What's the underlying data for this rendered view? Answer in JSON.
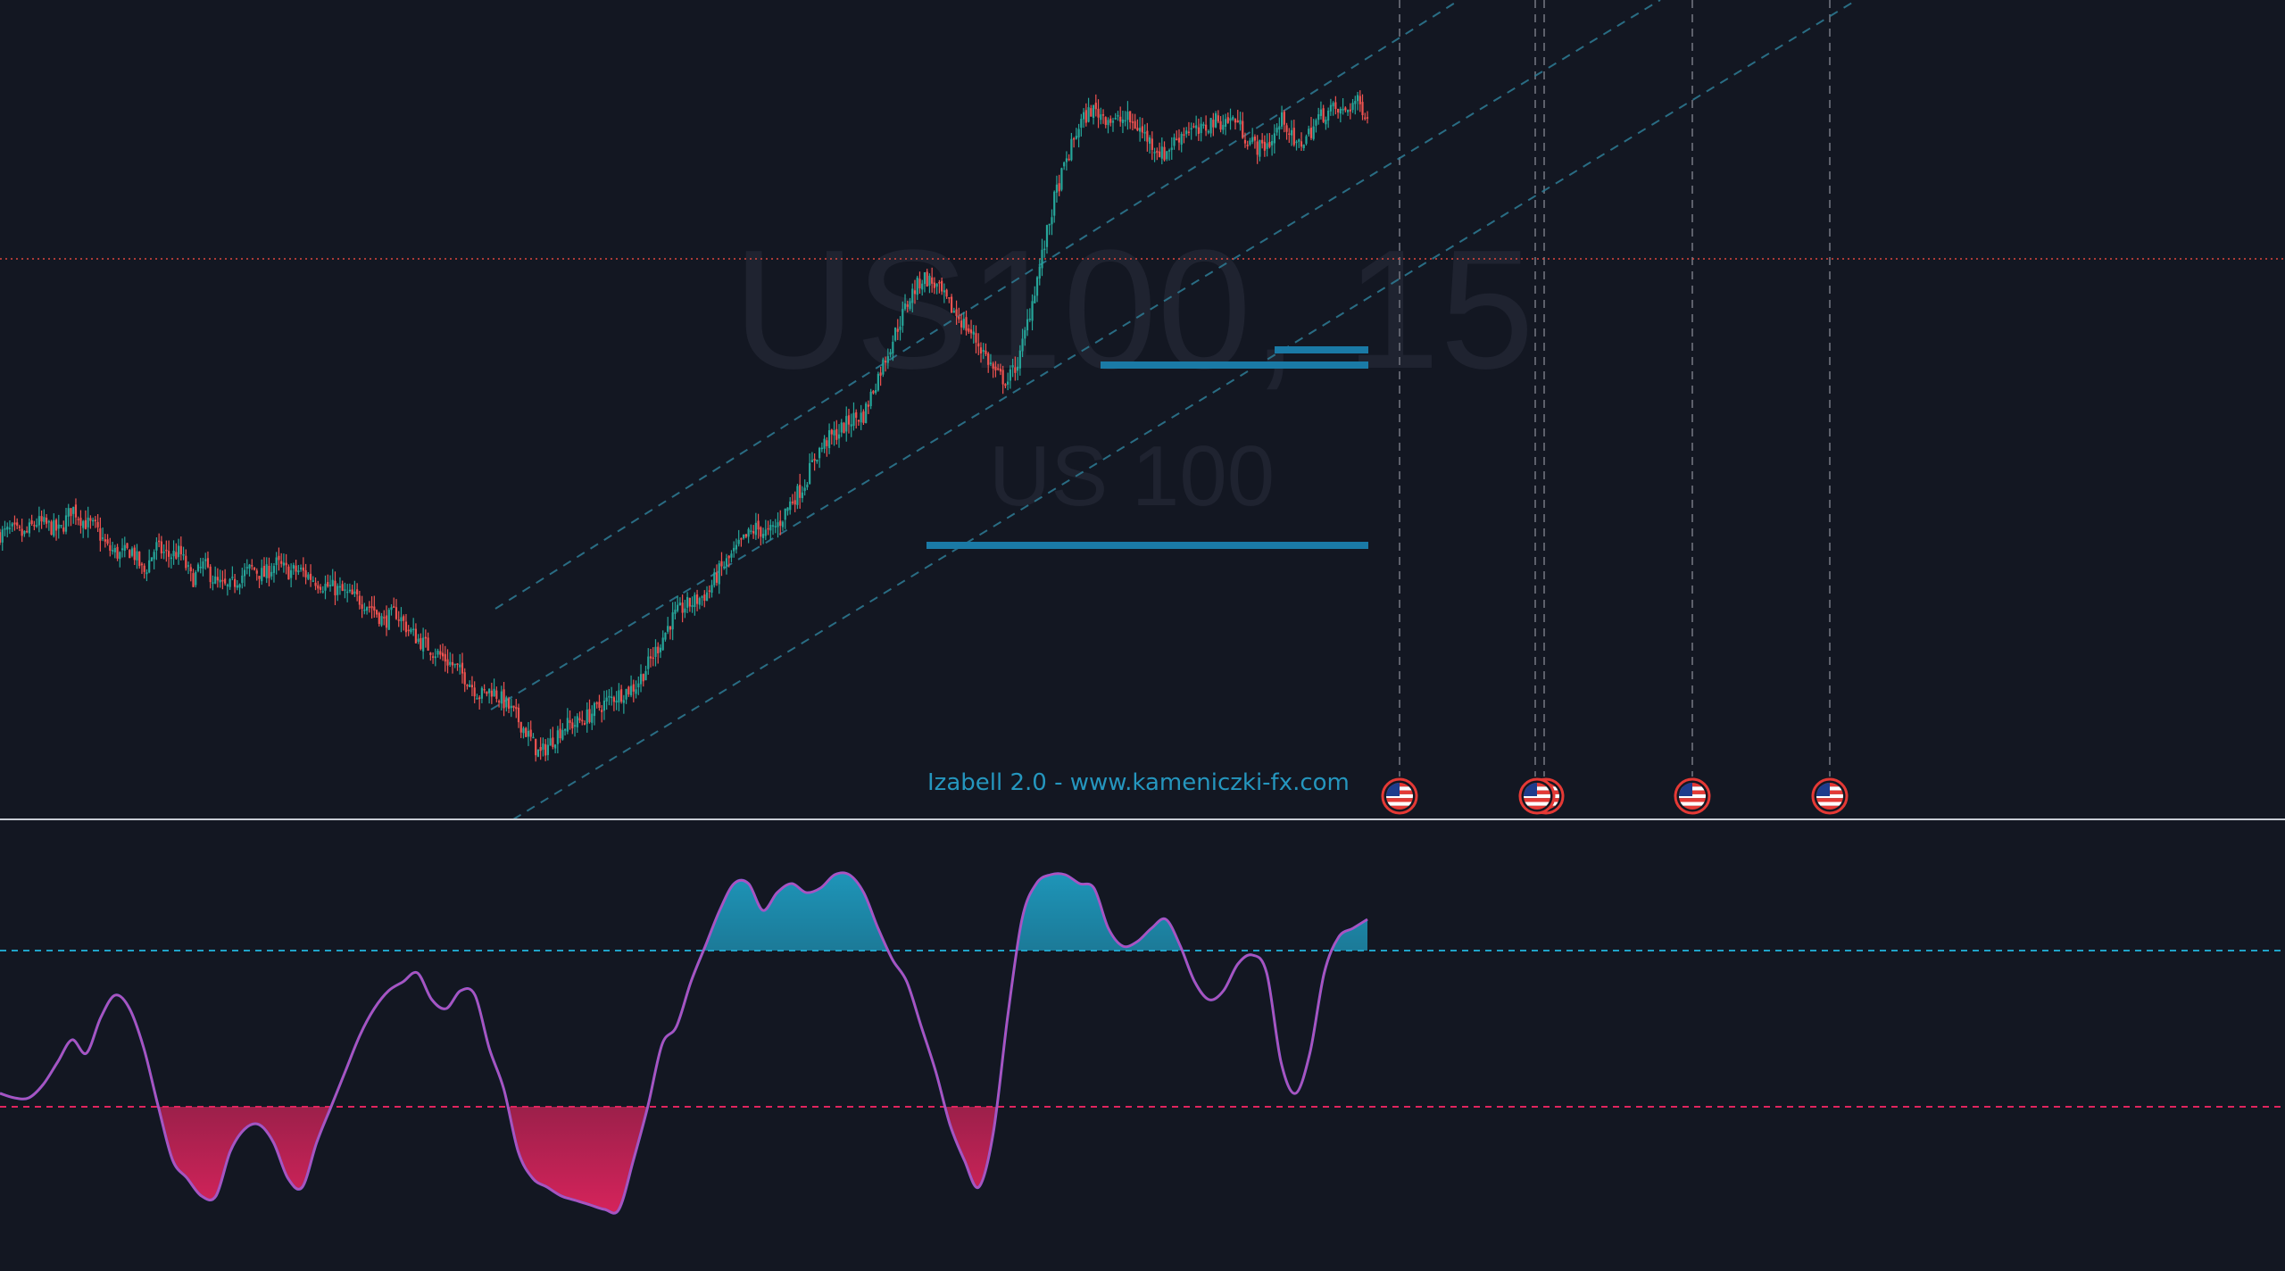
{
  "watermark": {
    "symbol_timeframe": "US100, 15",
    "description": "US 100"
  },
  "indicator_label": "Izabell 2.0 - www.kameniczki-fx.com",
  "colors": {
    "background": "#131722",
    "candle_up": "#26a69a",
    "candle_down": "#ef5350",
    "channel": "#2e7d96",
    "zone": "#1a7aa6",
    "price_line": "#e0463c",
    "osc_line": "#8e5cd8",
    "osc_upper": "#1fa3c9",
    "osc_lower": "#e0245e",
    "pane_separator": "#c8ccd4",
    "event_line": "#5d606b"
  },
  "event_markers": [
    {
      "name": "us-flag-icon",
      "count": 1
    },
    {
      "name": "us-flag-icon",
      "count": 2
    },
    {
      "name": "us-flag-icon",
      "count": 1
    },
    {
      "name": "us-flag-icon",
      "count": 1
    }
  ],
  "chart_data": [
    {
      "type": "line",
      "title": "",
      "description": "Candlestick price path (approximate close values, relative scale)",
      "series": [
        {
          "values": [
            50,
            53,
            49,
            60,
            57,
            52,
            72,
            60,
            55,
            38,
            33,
            37,
            18,
            40,
            32,
            35,
            12,
            25,
            10,
            5,
            15,
            22,
            16,
            26,
            19,
            20,
            14,
            8,
            5,
            0,
            -4,
            -10,
            -22,
            -14,
            -28,
            -38,
            -45,
            -52,
            -60,
            -70,
            -83,
            -78,
            -88,
            -100,
            -115,
            -132,
            -120,
            -108,
            -106,
            -100,
            -92,
            -85,
            -80,
            -75,
            -58,
            -40,
            -20,
            -10,
            -5,
            2,
            20,
            32,
            45,
            55,
            50,
            60,
            78,
            90,
            115,
            128,
            135,
            145,
            148,
            175,
            200,
            225,
            248,
            262,
            255,
            240,
            228,
            215,
            200,
            182,
            176,
            195,
            240,
            285,
            330,
            360,
            388,
            400,
            395,
            390,
            392,
            384,
            372,
            362,
            375,
            385,
            380,
            390,
            390,
            392,
            375,
            368,
            374,
            394,
            368,
            378,
            394,
            400,
            397,
            407,
            397
          ]
        }
      ]
    },
    {
      "type": "area",
      "title": "",
      "description": "Oscillator with upper/lower threshold lines (approximate, 0-100 relative scale)",
      "thresholds": {
        "upper": 65,
        "lower": 30
      },
      "series": [
        {
          "values": [
            33,
            32,
            32,
            35,
            40,
            45,
            42,
            50,
            55,
            52,
            43,
            30,
            18,
            14,
            10,
            10,
            20,
            25,
            26,
            22,
            14,
            12,
            22,
            30,
            38,
            46,
            52,
            56,
            58,
            60,
            54,
            52,
            56,
            55,
            43,
            34,
            20,
            14,
            12,
            10,
            9,
            8,
            7,
            7,
            18,
            30,
            44,
            48,
            58,
            66,
            74,
            80,
            80,
            74,
            78,
            80,
            78,
            79,
            82,
            82,
            78,
            70,
            63,
            58,
            48,
            38,
            26,
            18,
            12,
            24,
            50,
            72,
            80,
            82,
            82,
            80,
            79,
            70,
            66,
            67,
            70,
            72,
            66,
            58,
            54,
            56,
            62,
            64,
            60,
            40,
            33,
            42,
            60,
            68,
            70,
            72
          ]
        }
      ]
    }
  ]
}
